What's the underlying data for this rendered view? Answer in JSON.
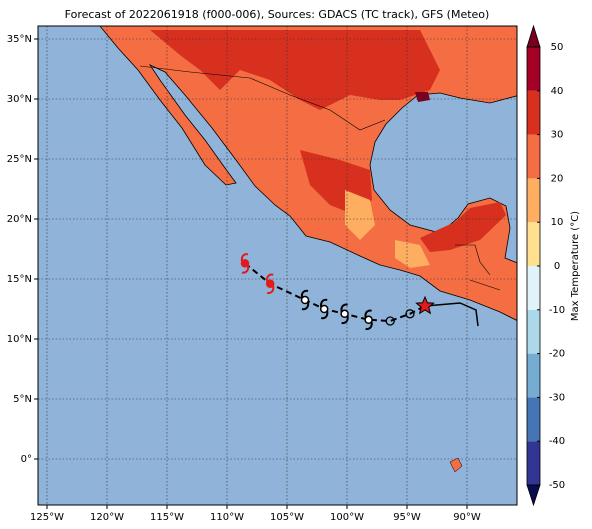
{
  "title": "Forecast of 2022061918 (f000-006), Sources: GDACS (TC track), GFS (Meteo)",
  "lon_ticks": [
    {
      "value": -125,
      "label": "125°W"
    },
    {
      "value": -120,
      "label": "120°W"
    },
    {
      "value": -115,
      "label": "115°W"
    },
    {
      "value": -110,
      "label": "110°W"
    },
    {
      "value": -105,
      "label": "105°W"
    },
    {
      "value": -100,
      "label": "100°W"
    },
    {
      "value": -95,
      "label": "95°W"
    },
    {
      "value": -90,
      "label": "90°W"
    }
  ],
  "lat_ticks": [
    {
      "value": 35,
      "label": "35°N"
    },
    {
      "value": 30,
      "label": "30°N"
    },
    {
      "value": 25,
      "label": "25°N"
    },
    {
      "value": 20,
      "label": "20°N"
    },
    {
      "value": 15,
      "label": "15°N"
    },
    {
      "value": 10,
      "label": "10°N"
    },
    {
      "value": 5,
      "label": "5°N"
    },
    {
      "value": 0,
      "label": "0°"
    }
  ],
  "colorbar": {
    "label": "Max Temperature (°C)",
    "ticks": [
      50,
      40,
      30,
      20,
      10,
      0,
      -10,
      -20,
      -30,
      -40,
      -50
    ],
    "colors": [
      "#313695",
      "#4575b4",
      "#74add1",
      "#abd9e9",
      "#e0f3f8",
      "#fee090",
      "#fdae61",
      "#f46d43",
      "#d7301f",
      "#a50026"
    ],
    "under_color": "#0b0b50",
    "over_color": "#7a0020"
  },
  "track": [
    {
      "lon": -108.5,
      "lat": 16.3,
      "marker": "hurricane-red"
    },
    {
      "lon": -106.4,
      "lat": 14.6,
      "marker": "hurricane-red"
    },
    {
      "lon": -103.5,
      "lat": 13.25,
      "marker": "storm"
    },
    {
      "lon": -101.9,
      "lat": 12.5,
      "marker": "storm"
    },
    {
      "lon": -100.2,
      "lat": 12.1,
      "marker": "storm"
    },
    {
      "lon": -98.2,
      "lat": 11.6,
      "marker": "storm"
    },
    {
      "lon": -96.4,
      "lat": 11.5,
      "marker": "circle"
    },
    {
      "lon": -94.75,
      "lat": 12.1,
      "marker": "circle"
    },
    {
      "lon": -93.5,
      "lat": 12.75,
      "marker": "star"
    }
  ]
}
